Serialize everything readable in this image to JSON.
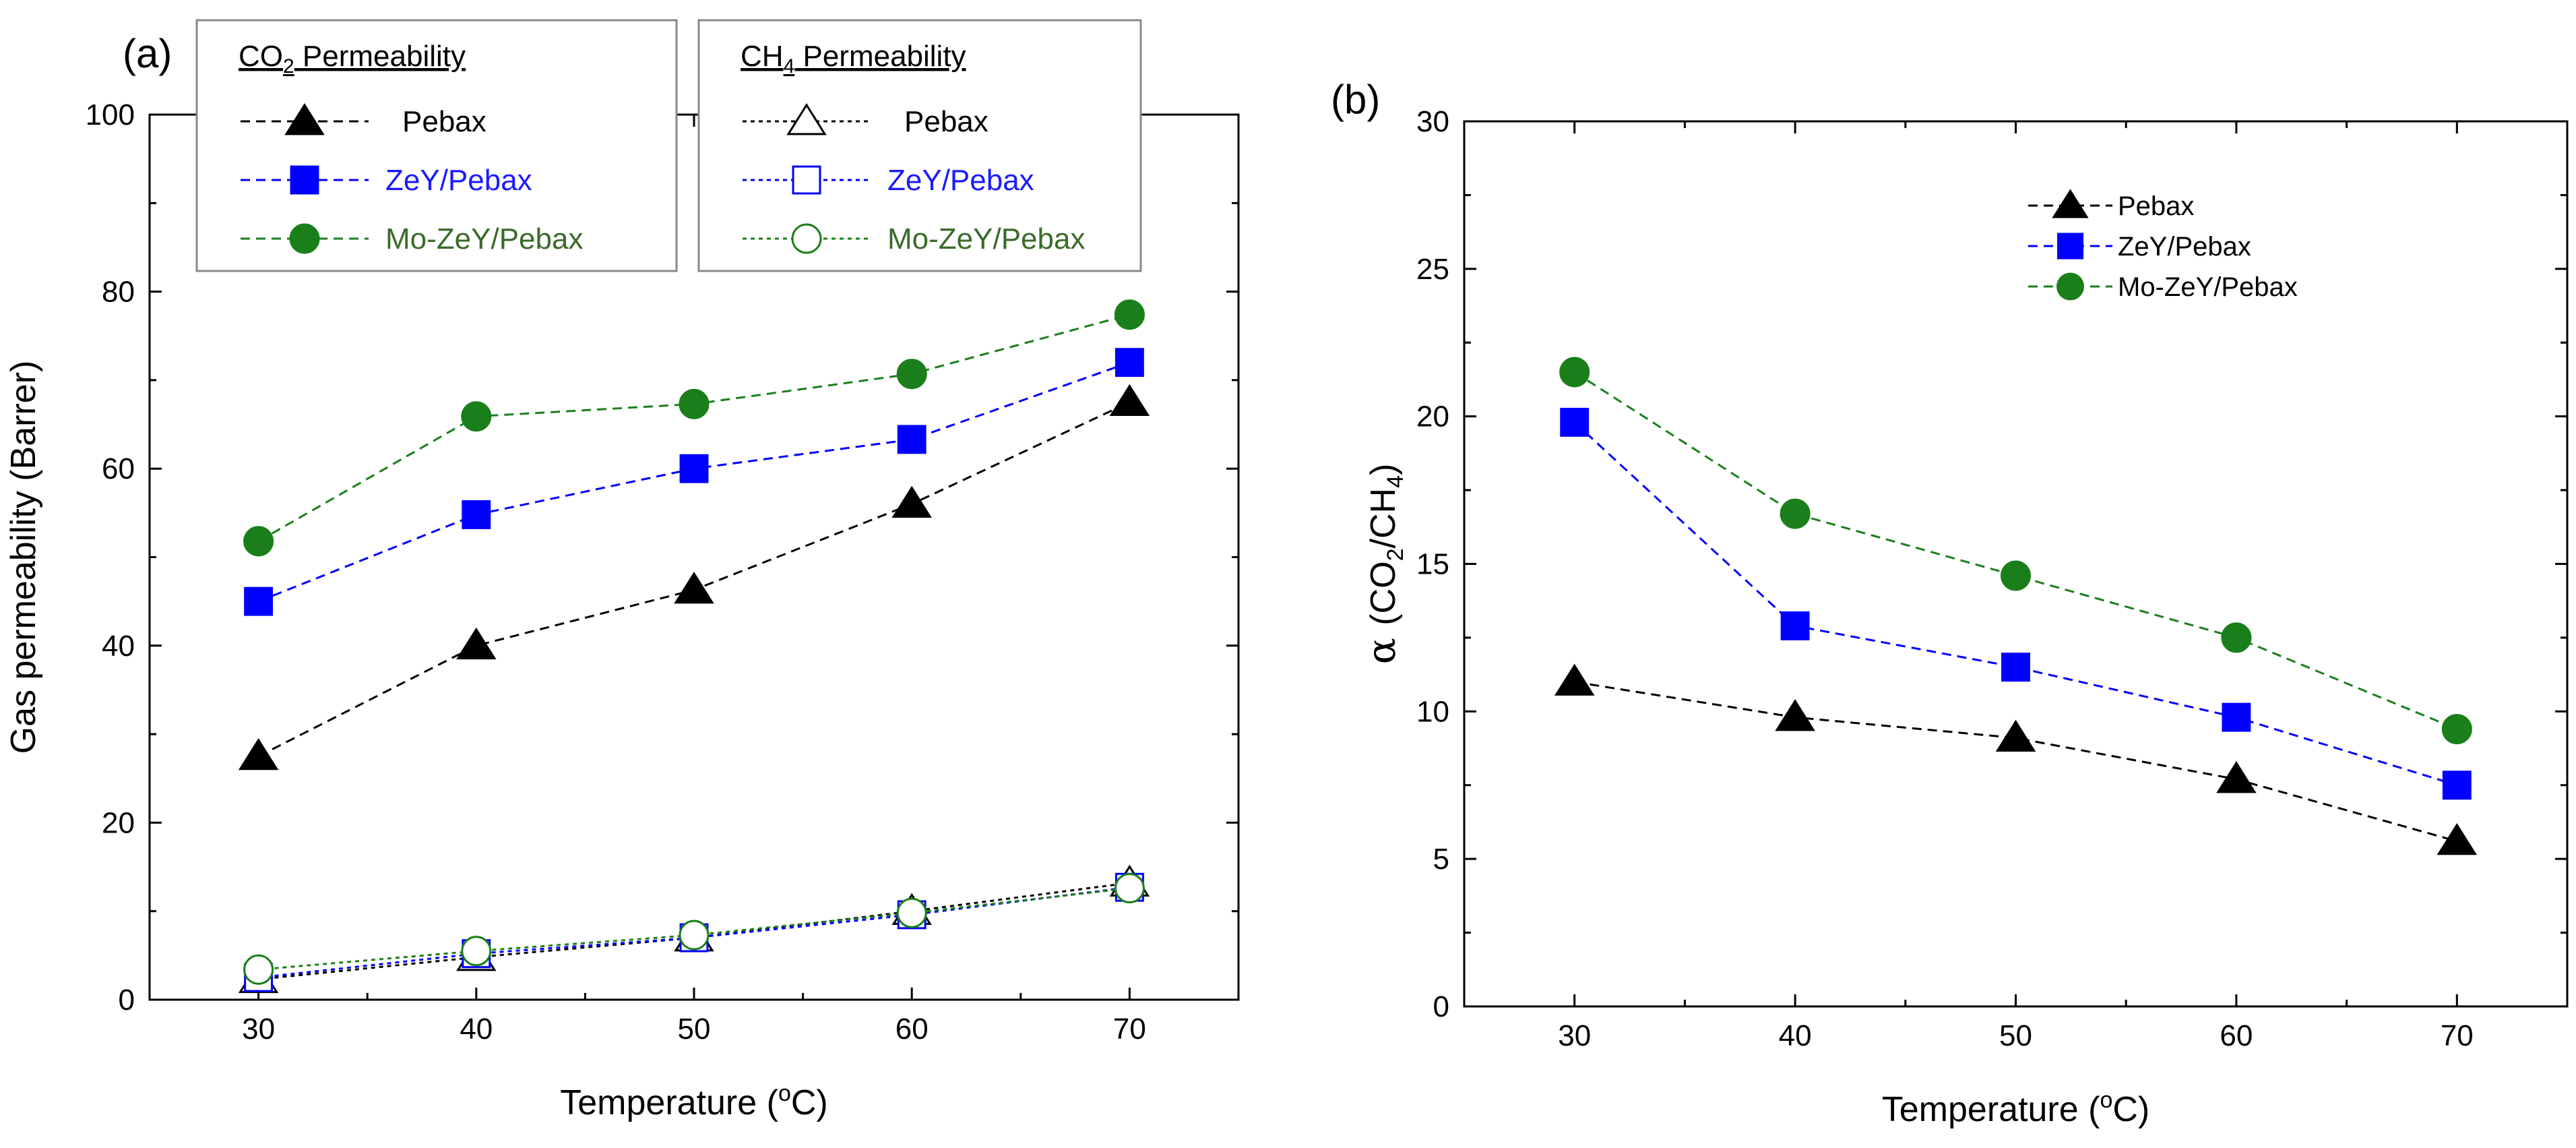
{
  "colors": {
    "pebax": "#000000",
    "zey": "#0000ff",
    "mozey": "#1a7f1a",
    "zey_text": "#1a1aff",
    "mozey_text": "#3a6b2a",
    "axis": "#000000",
    "legend_border": "#888888"
  },
  "chart_data": [
    {
      "id": "a",
      "panel_label": "(a)",
      "type": "line",
      "xlabel": "Temperature (",
      "xlabel_sup": "o",
      "xlabel_end": "C)",
      "ylabel": "Gas permeability (Barrer)",
      "xlim": [
        25,
        75
      ],
      "ylim": [
        0,
        100
      ],
      "xticks": [
        30,
        40,
        50,
        60,
        70
      ],
      "yticks": [
        0,
        20,
        40,
        60,
        80,
        100
      ],
      "x": [
        30,
        40,
        50,
        60,
        70
      ],
      "legend_groups": [
        {
          "title_main": "CO",
          "title_sub": "2",
          "title_rest": " Permeability"
        },
        {
          "title_main": "CH",
          "title_sub": "4",
          "title_rest": " Permeability"
        }
      ],
      "series": [
        {
          "name": "Pebax",
          "group": 0,
          "gas": "CO2",
          "marker": "triangle",
          "fill": "filled",
          "color_key": "pebax",
          "dash": "dashed",
          "values": [
            27.5,
            40.0,
            46.3,
            56.0,
            67.5
          ]
        },
        {
          "name": "ZeY/Pebax",
          "group": 0,
          "gas": "CO2",
          "marker": "square",
          "fill": "filled",
          "color_key": "zey",
          "dash": "dashed",
          "values": [
            45.0,
            54.8,
            60.0,
            63.3,
            72.0
          ]
        },
        {
          "name": "Mo-ZeY/Pebax",
          "group": 0,
          "gas": "CO2",
          "marker": "circle",
          "fill": "filled",
          "color_key": "mozey",
          "dash": "dashed",
          "values": [
            51.8,
            65.9,
            67.3,
            70.7,
            77.4
          ]
        },
        {
          "name": "Pebax",
          "group": 1,
          "gas": "CH4",
          "marker": "triangle",
          "fill": "open",
          "color_key": "pebax",
          "dash": "dotted",
          "values": [
            2.3,
            4.8,
            7.0,
            10.0,
            13.2
          ]
        },
        {
          "name": "ZeY/Pebax",
          "group": 1,
          "gas": "CH4",
          "marker": "square",
          "fill": "open",
          "color_key": "zey",
          "dash": "dotted",
          "values": [
            2.5,
            5.2,
            7.0,
            9.6,
            12.7
          ]
        },
        {
          "name": "Mo-ZeY/Pebax",
          "group": 1,
          "gas": "CH4",
          "marker": "circle",
          "fill": "open",
          "color_key": "mozey",
          "dash": "dotted",
          "values": [
            3.4,
            5.5,
            7.3,
            9.8,
            12.6
          ]
        }
      ]
    },
    {
      "id": "b",
      "panel_label": "(b)",
      "type": "line",
      "xlabel": "Temperature (",
      "xlabel_sup": "o",
      "xlabel_end": "C)",
      "ylabel_alpha": "α",
      "ylabel_a": "(CO",
      "ylabel_sub1": "2",
      "ylabel_b": "/CH",
      "ylabel_sub2": "4",
      "ylabel_c": ")",
      "xlim": [
        25,
        75
      ],
      "ylim": [
        0,
        30
      ],
      "xticks": [
        30,
        40,
        50,
        60,
        70
      ],
      "yticks": [
        0,
        5,
        10,
        15,
        20,
        25,
        30
      ],
      "x": [
        30,
        40,
        50,
        60,
        70
      ],
      "legend_position": "upper-right",
      "series": [
        {
          "name": "Pebax",
          "marker": "triangle",
          "fill": "filled",
          "color_key": "pebax",
          "dash": "dashed",
          "values": [
            11.0,
            9.8,
            9.1,
            7.7,
            5.6
          ]
        },
        {
          "name": "ZeY/Pebax",
          "marker": "square",
          "fill": "filled",
          "color_key": "zey",
          "dash": "dashed",
          "values": [
            19.8,
            12.9,
            11.5,
            9.8,
            7.5
          ]
        },
        {
          "name": "Mo-ZeY/Pebax",
          "marker": "circle",
          "fill": "filled",
          "color_key": "mozey",
          "dash": "dashed",
          "values": [
            21.5,
            16.7,
            14.6,
            12.5,
            9.4
          ]
        }
      ]
    }
  ]
}
